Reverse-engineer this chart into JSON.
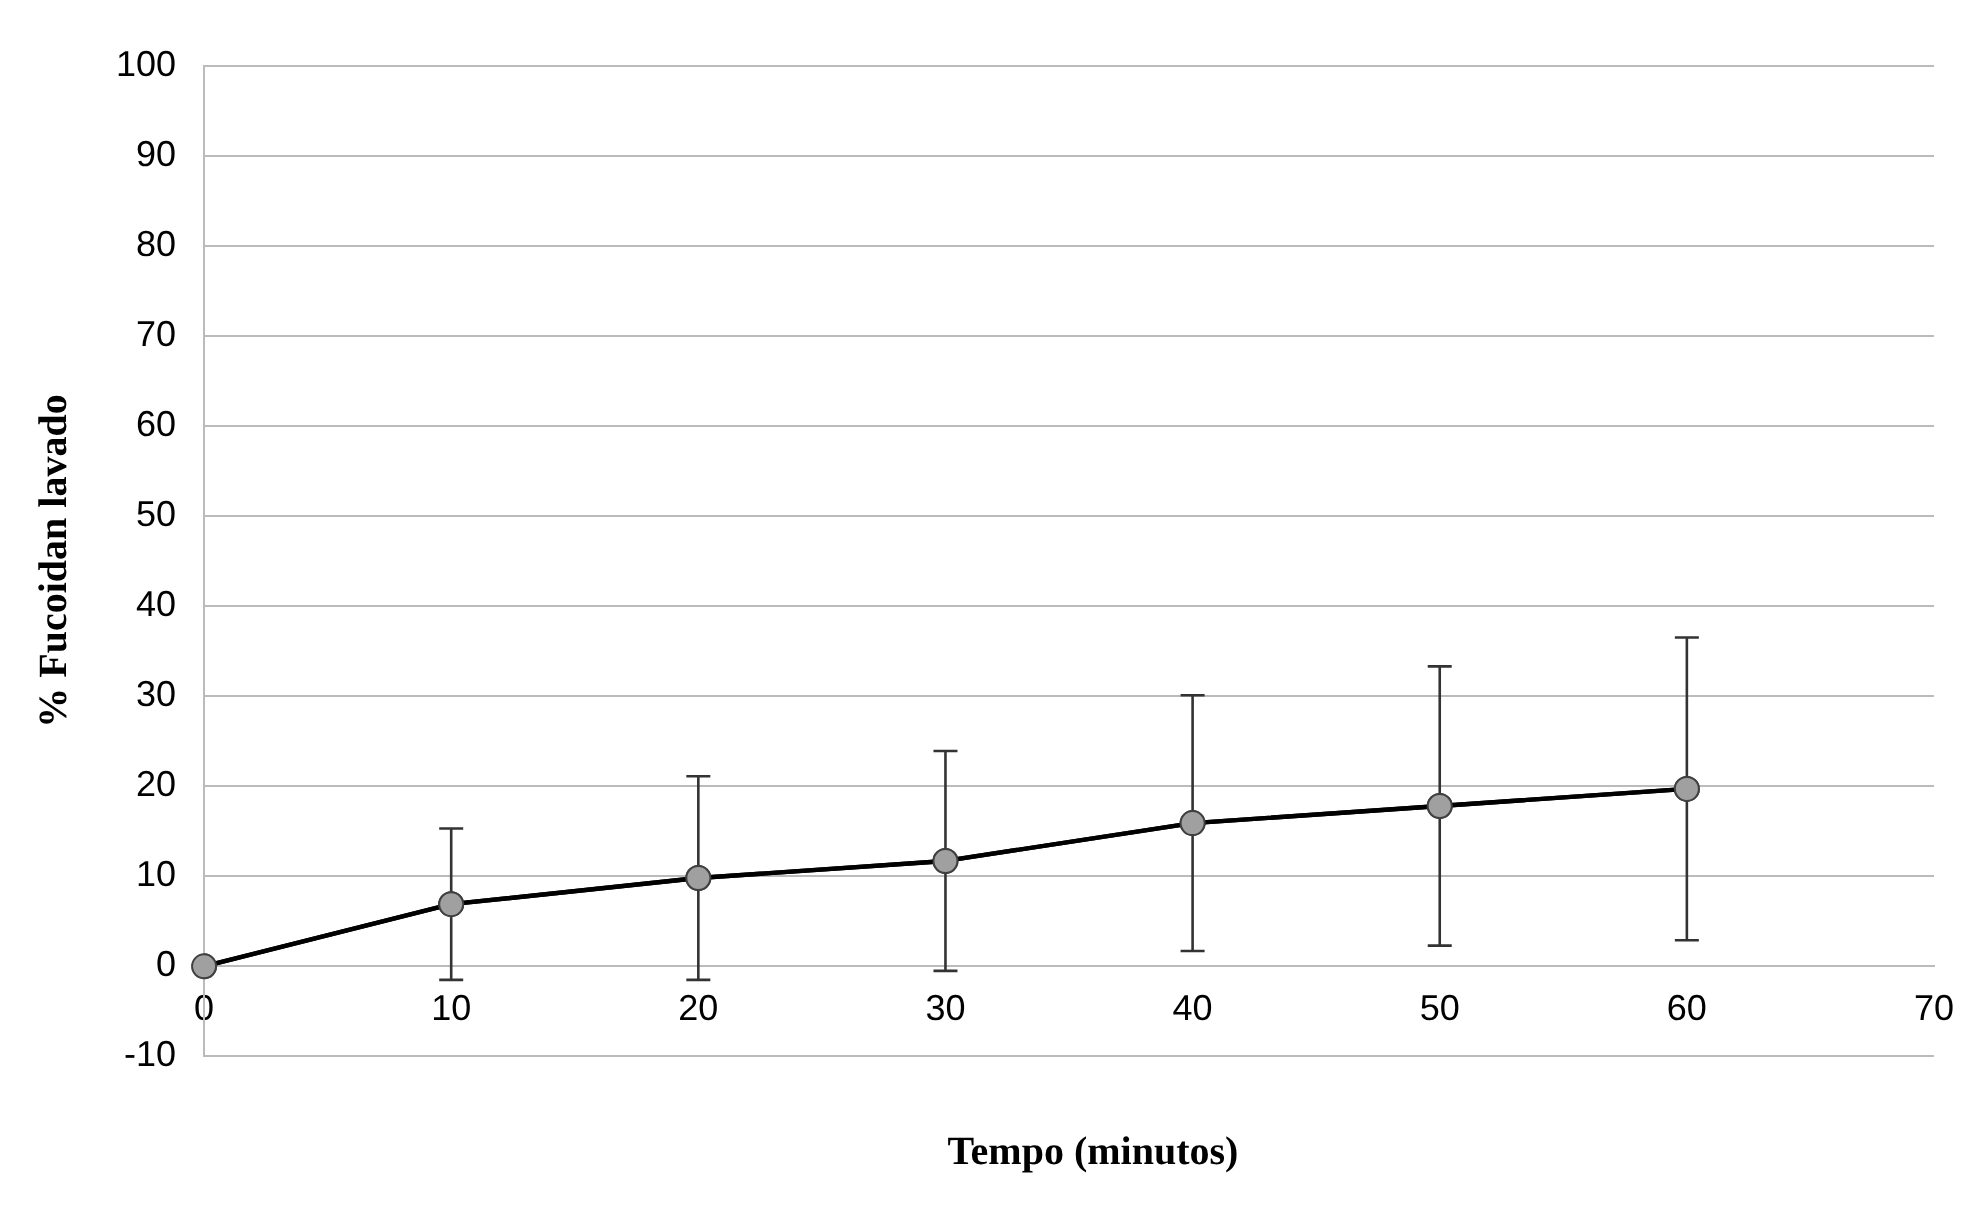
{
  "chart_data": {
    "type": "line",
    "xlabel": "Tempo (minutos)",
    "ylabel": "% Fucoidan lavado",
    "x": [
      0,
      10,
      20,
      30,
      40,
      50,
      60
    ],
    "series": [
      {
        "color": "#000000",
        "values": [
          0,
          6.9,
          9.8,
          11.7,
          15.9,
          17.8,
          19.7
        ],
        "errors": [
          null,
          8.4,
          11.3,
          12.2,
          14.2,
          15.5,
          16.8
        ]
      }
    ],
    "xlim": [
      0,
      70
    ],
    "xticks": [
      0,
      10,
      20,
      30,
      40,
      50,
      60,
      70
    ],
    "ylim": [
      -10,
      100
    ],
    "yticks": [
      -10,
      0,
      10,
      20,
      30,
      40,
      50,
      60,
      70,
      80,
      90,
      100
    ],
    "grid": "y",
    "marker": "circle",
    "line_style": "solid",
    "legend": false
  }
}
